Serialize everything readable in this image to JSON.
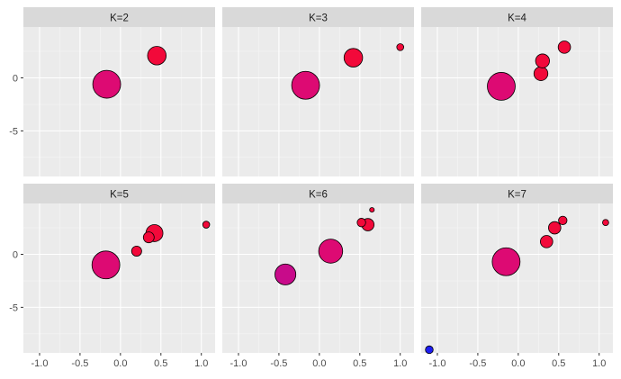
{
  "chart_data": {
    "type": "scatter",
    "facet_layout": {
      "rows": 2,
      "cols": 3
    },
    "x_ticks": [
      -1.0,
      -0.5,
      0.0,
      0.5,
      1.0
    ],
    "x_tick_labels": [
      "-1.0",
      "-0.5",
      "0.0",
      "0.5",
      "1.0"
    ],
    "y_ticks": [
      0,
      -5
    ],
    "y_tick_labels": [
      "0",
      "-5"
    ],
    "xlim": [
      -1.2,
      1.17
    ],
    "ylim": [
      -9.3,
      4.8
    ],
    "grid": true,
    "panels": [
      {
        "label": "K=2",
        "points": [
          {
            "x": -0.17,
            "y": -0.6,
            "size": 3.6,
            "color": "#dd0a73"
          },
          {
            "x": 0.45,
            "y": 2.1,
            "size": 2.4,
            "color": "#f2093a"
          }
        ]
      },
      {
        "label": "K=3",
        "points": [
          {
            "x": -0.17,
            "y": -0.7,
            "size": 3.6,
            "color": "#dd0a73"
          },
          {
            "x": 0.42,
            "y": 1.9,
            "size": 2.4,
            "color": "#f2093a"
          },
          {
            "x": 1.0,
            "y": 2.9,
            "size": 0.9,
            "color": "#f2093a"
          }
        ]
      },
      {
        "label": "K=4",
        "points": [
          {
            "x": -0.21,
            "y": -0.8,
            "size": 3.6,
            "color": "#dd0a73"
          },
          {
            "x": 0.28,
            "y": 0.4,
            "size": 1.8,
            "color": "#f2093a"
          },
          {
            "x": 0.3,
            "y": 1.6,
            "size": 1.8,
            "color": "#f2093a"
          },
          {
            "x": 0.57,
            "y": 2.9,
            "size": 1.6,
            "color": "#f2093a"
          }
        ]
      },
      {
        "label": "K=5",
        "points": [
          {
            "x": -0.18,
            "y": -1.0,
            "size": 3.6,
            "color": "#dd0a73"
          },
          {
            "x": 0.2,
            "y": 0.3,
            "size": 1.3,
            "color": "#f2093a"
          },
          {
            "x": 0.35,
            "y": 1.6,
            "size": 1.4,
            "color": "#f2093a"
          },
          {
            "x": 0.42,
            "y": 2.0,
            "size": 2.2,
            "color": "#f2093a"
          },
          {
            "x": 1.06,
            "y": 2.8,
            "size": 0.9,
            "color": "#f2093a"
          }
        ]
      },
      {
        "label": "K=6",
        "points": [
          {
            "x": -0.42,
            "y": -1.9,
            "size": 2.7,
            "color": "#c80b8a"
          },
          {
            "x": 0.14,
            "y": 0.3,
            "size": 3.1,
            "color": "#dd0a73"
          },
          {
            "x": 0.52,
            "y": 3.0,
            "size": 1.1,
            "color": "#f2093a"
          },
          {
            "x": 0.6,
            "y": 2.8,
            "size": 1.6,
            "color": "#f2093a"
          },
          {
            "x": 0.65,
            "y": 4.2,
            "size": 0.6,
            "color": "#f2093a"
          }
        ]
      },
      {
        "label": "K=7",
        "points": [
          {
            "x": -1.1,
            "y": -9.0,
            "size": 1.0,
            "color": "#1d1df2"
          },
          {
            "x": -0.15,
            "y": -0.7,
            "size": 3.6,
            "color": "#dd0a73"
          },
          {
            "x": 0.35,
            "y": 1.2,
            "size": 1.6,
            "color": "#f2093a"
          },
          {
            "x": 0.45,
            "y": 2.5,
            "size": 1.6,
            "color": "#f2093a"
          },
          {
            "x": 0.55,
            "y": 3.2,
            "size": 1.1,
            "color": "#f2093a"
          },
          {
            "x": 1.08,
            "y": 3.0,
            "size": 0.8,
            "color": "#f2093a"
          }
        ]
      }
    ]
  },
  "colors": {
    "panel_bg": "#ebebeb",
    "strip_bg": "#d9d9d9",
    "grid_major": "#ffffff",
    "grid_minor": "#f5f5f5",
    "point_stroke": "#000000",
    "tick_mark": "#333333",
    "tick_text": "#4d4d4d"
  }
}
